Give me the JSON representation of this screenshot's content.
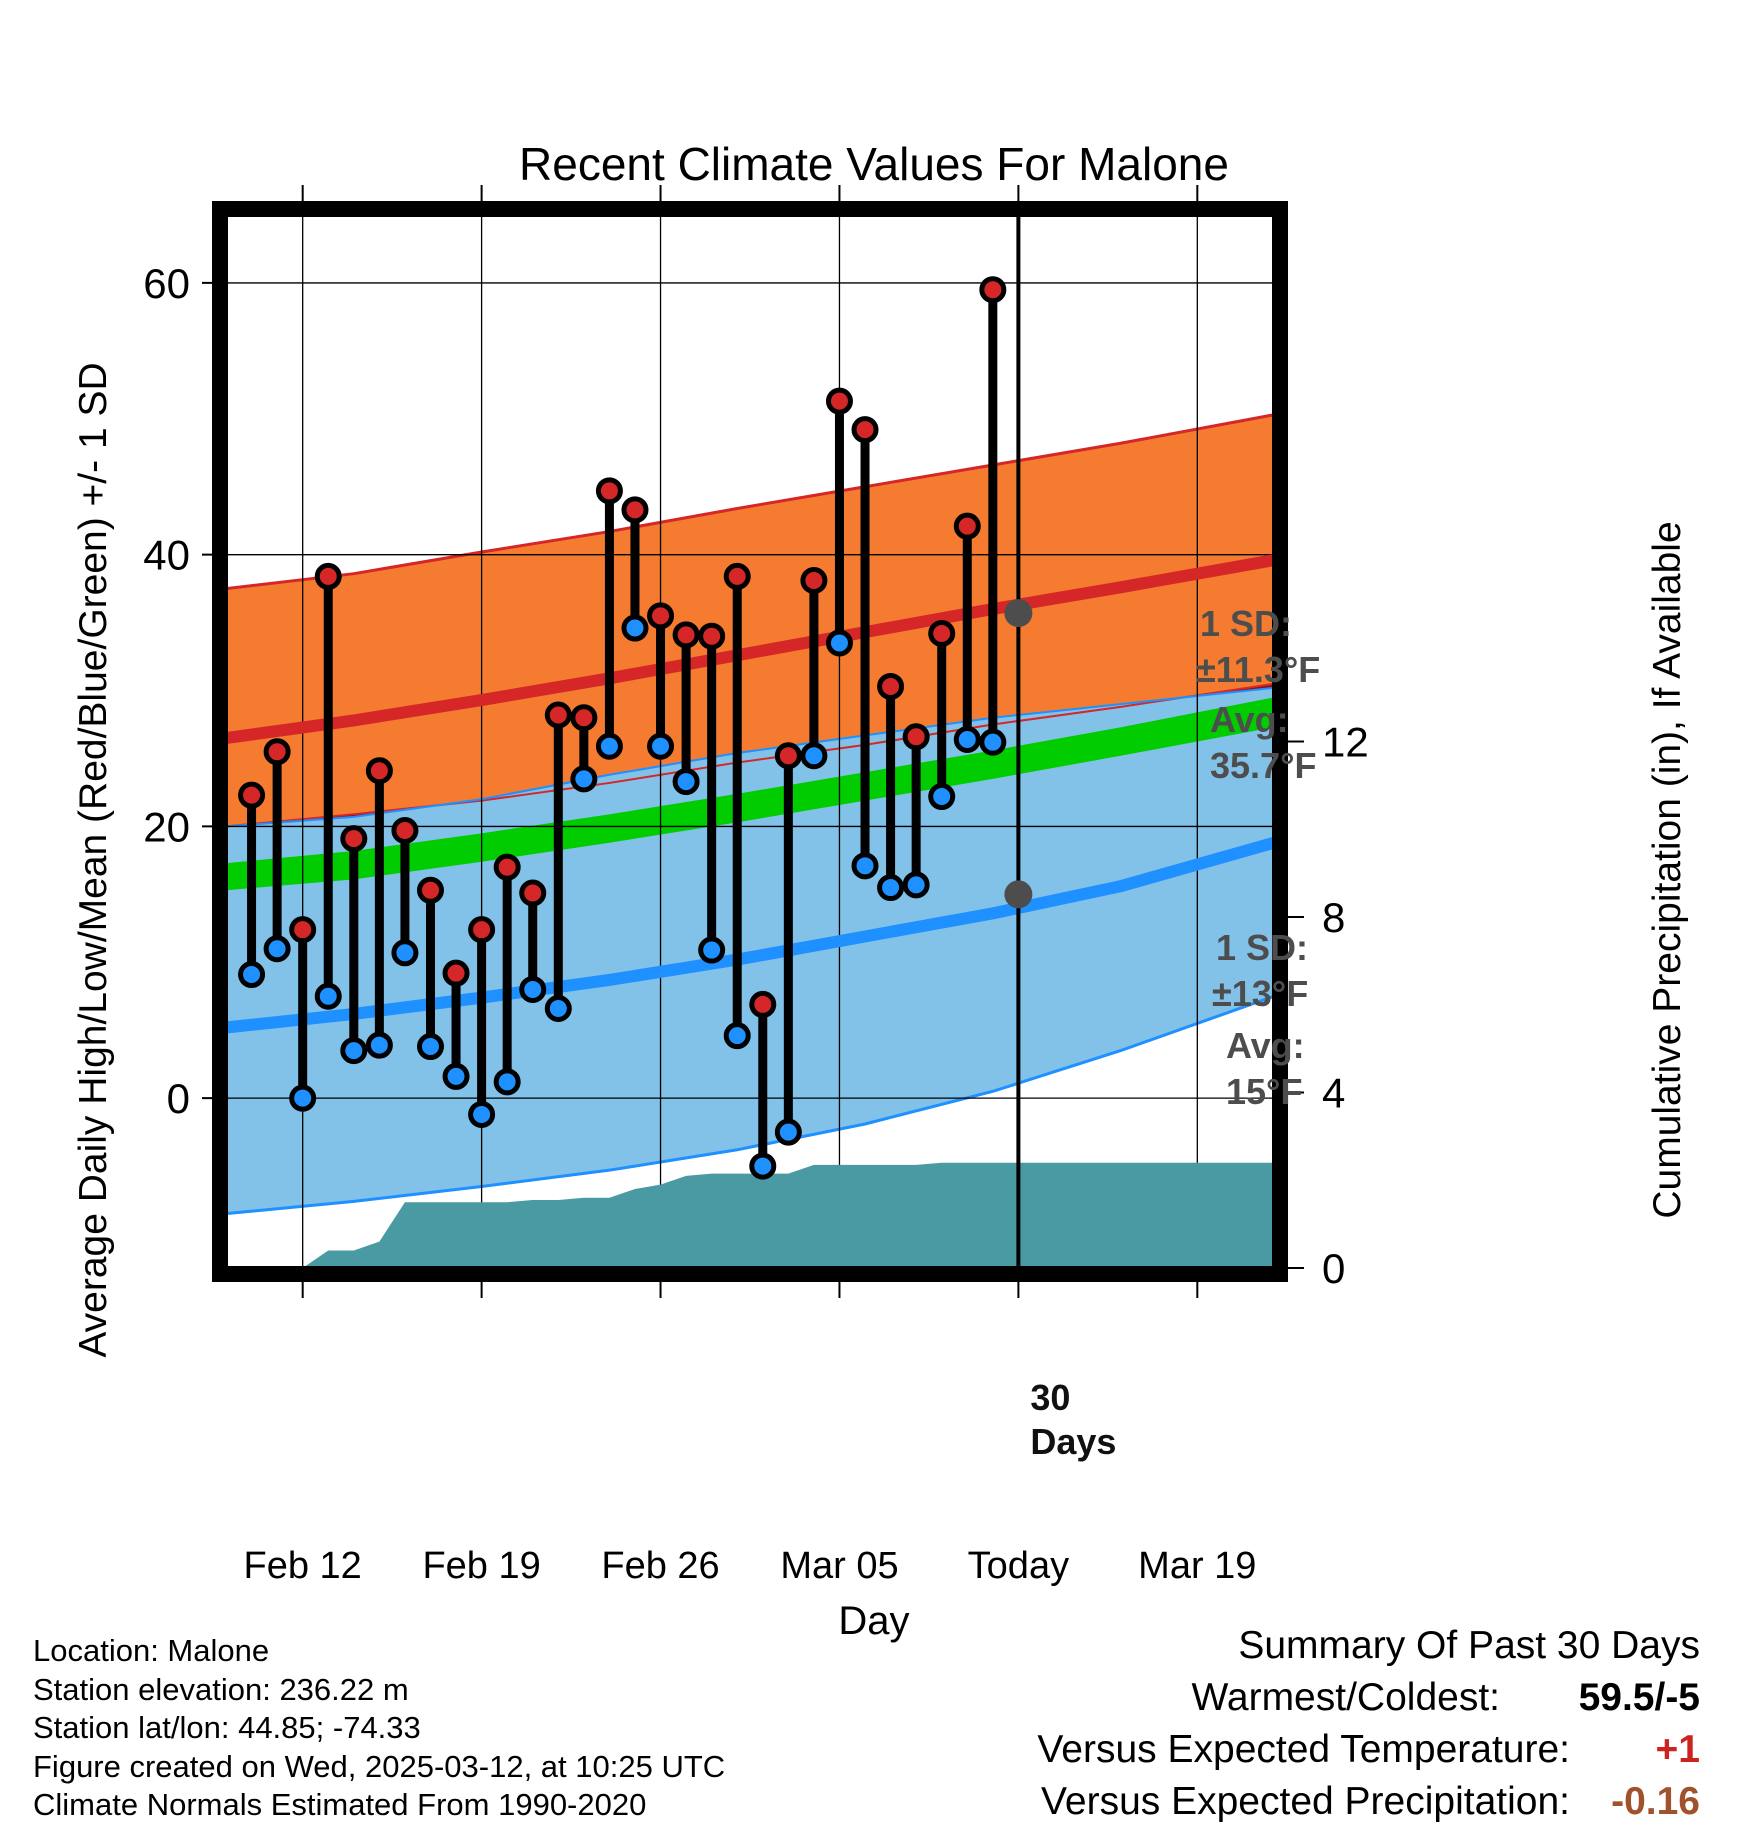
{
  "chart_data": {
    "type": "line",
    "title": "Recent Climate Values For Malone",
    "xlabel": "Day",
    "ylabel": "Average Daily High/Low/Mean (Red/Blue/Green) +/- 1 SD",
    "y2label": "Cumulative Precipitation (in), If Available",
    "x_range": [
      "2025-02-09",
      "2025-03-22"
    ],
    "ylim": [
      -12.5,
      65
    ],
    "y2lim": [
      0,
      24
    ],
    "y_ticks": [
      0,
      20,
      40,
      60
    ],
    "y_ticks_labeled": [
      "0",
      "20",
      "40",
      "60"
    ],
    "y2_ticks": [
      0,
      4,
      8,
      12
    ],
    "y2_ticks_labeled": [
      "0",
      "4",
      "8",
      "12"
    ],
    "x_ticks": [
      {
        "date": "2025-02-12",
        "label": "Feb 12"
      },
      {
        "date": "2025-02-19",
        "label": "Feb 19"
      },
      {
        "date": "2025-02-26",
        "label": "Feb 26"
      },
      {
        "date": "2025-03-05",
        "label": "Mar 05"
      },
      {
        "date": "2025-03-12",
        "label": "Today"
      },
      {
        "date": "2025-03-19",
        "label": "Mar 19"
      }
    ],
    "grid": true,
    "today": "2025-03-12",
    "today_marker_label": "30\nDays",
    "normals": {
      "dates": [
        "2025-02-09",
        "2025-02-14",
        "2025-02-19",
        "2025-02-24",
        "2025-03-01",
        "2025-03-06",
        "2025-03-11",
        "2025-03-16",
        "2025-03-22"
      ],
      "high_mean": [
        26.5,
        27.8,
        29.3,
        30.9,
        32.6,
        34.3,
        36.0,
        37.6,
        39.6
      ],
      "high_upper": [
        37.5,
        38.6,
        40.2,
        41.7,
        43.4,
        45.0,
        46.6,
        48.2,
        50.3
      ],
      "high_lower": [
        20.0,
        20.9,
        21.9,
        23.2,
        24.7,
        26.0,
        27.5,
        28.8,
        30.5
      ],
      "mean_upper": [
        17.3,
        18.2,
        19.5,
        20.9,
        22.4,
        24.0,
        25.6,
        27.3,
        29.5
      ],
      "mean_lower": [
        15.3,
        16.1,
        17.4,
        18.8,
        20.3,
        21.9,
        23.5,
        25.2,
        27.3
      ],
      "low_mean": [
        5.2,
        6.2,
        7.4,
        8.7,
        10.2,
        11.9,
        13.6,
        15.6,
        18.8
      ],
      "low_upper": [
        20.0,
        20.7,
        22.0,
        23.8,
        25.4,
        26.7,
        28.0,
        29.0,
        30.2
      ],
      "low_lower": [
        -8.5,
        -7.6,
        -6.5,
        -5.3,
        -3.8,
        -1.9,
        0.5,
        3.5,
        7.5
      ]
    },
    "series": [
      {
        "name": "High",
        "dates": [
          "2025-02-10",
          "2025-02-11",
          "2025-02-12",
          "2025-02-13",
          "2025-02-14",
          "2025-02-15",
          "2025-02-16",
          "2025-02-17",
          "2025-02-18",
          "2025-02-19",
          "2025-02-20",
          "2025-02-21",
          "2025-02-22",
          "2025-02-23",
          "2025-02-24",
          "2025-02-25",
          "2025-02-26",
          "2025-02-27",
          "2025-02-28",
          "2025-03-01",
          "2025-03-02",
          "2025-03-03",
          "2025-03-04",
          "2025-03-05",
          "2025-03-06",
          "2025-03-07",
          "2025-03-08",
          "2025-03-09",
          "2025-03-10",
          "2025-03-11",
          "2025-03-12"
        ],
        "values": [
          22.3,
          25.5,
          12.4,
          38.4,
          19.1,
          24.1,
          19.7,
          15.3,
          9.2,
          12.4,
          17.0,
          15.1,
          28.2,
          28.0,
          44.7,
          43.3,
          35.5,
          34.1,
          34.0,
          38.4,
          6.9,
          25.2,
          38.1,
          51.3,
          49.2,
          30.3,
          26.6,
          34.2,
          42.1,
          59.5,
          null
        ]
      },
      {
        "name": "Low",
        "dates": [
          "2025-02-10",
          "2025-02-11",
          "2025-02-12",
          "2025-02-13",
          "2025-02-14",
          "2025-02-15",
          "2025-02-16",
          "2025-02-17",
          "2025-02-18",
          "2025-02-19",
          "2025-02-20",
          "2025-02-21",
          "2025-02-22",
          "2025-02-23",
          "2025-02-24",
          "2025-02-25",
          "2025-02-26",
          "2025-02-27",
          "2025-02-28",
          "2025-03-01",
          "2025-03-02",
          "2025-03-03",
          "2025-03-04",
          "2025-03-05",
          "2025-03-06",
          "2025-03-07",
          "2025-03-08",
          "2025-03-09",
          "2025-03-10",
          "2025-03-11",
          "2025-03-12"
        ],
        "values": [
          9.1,
          11.0,
          0.0,
          7.5,
          3.5,
          3.9,
          10.7,
          3.8,
          1.6,
          -1.2,
          1.2,
          8.0,
          6.6,
          23.5,
          25.9,
          34.6,
          25.9,
          23.3,
          10.9,
          4.6,
          -5.0,
          -2.5,
          25.2,
          33.5,
          17.1,
          15.5,
          15.7,
          22.2,
          26.4,
          26.2,
          null
        ]
      },
      {
        "name": "Cumulative Precipitation",
        "dates": [
          "2025-02-10",
          "2025-02-11",
          "2025-02-12",
          "2025-02-13",
          "2025-02-14",
          "2025-02-15",
          "2025-02-16",
          "2025-02-17",
          "2025-02-18",
          "2025-02-19",
          "2025-02-20",
          "2025-02-21",
          "2025-02-22",
          "2025-02-23",
          "2025-02-24",
          "2025-02-25",
          "2025-02-26",
          "2025-02-27",
          "2025-02-28",
          "2025-03-01",
          "2025-03-02",
          "2025-03-03",
          "2025-03-04",
          "2025-03-05",
          "2025-03-06",
          "2025-03-07",
          "2025-03-08",
          "2025-03-09",
          "2025-03-10",
          "2025-03-11",
          "2025-03-12",
          "2025-03-22"
        ],
        "values": [
          0.0,
          0.0,
          0.0,
          0.4,
          0.4,
          0.6,
          1.5,
          1.5,
          1.5,
          1.5,
          1.5,
          1.55,
          1.55,
          1.6,
          1.6,
          1.8,
          1.9,
          2.1,
          2.15,
          2.15,
          2.15,
          2.15,
          2.35,
          2.35,
          2.35,
          2.35,
          2.35,
          2.4,
          2.4,
          2.4,
          2.4,
          2.4
        ]
      }
    ],
    "annotations": {
      "high_sd": "1 SD:",
      "high_sd_value": "±11.3°F",
      "high_avg_label": "Avg:",
      "high_avg_value": "35.7°F",
      "high_avg": 35.7,
      "low_sd": "1 SD:",
      "low_sd_value": "±13°F",
      "low_avg_label": "Avg:",
      "low_avg_value": "15°F",
      "low_avg": 15
    },
    "colors": {
      "high_band": "#f47b30",
      "high_line": "#d62728",
      "overlap_band": "#8b0f14",
      "mean_band": "#00cc00",
      "low_band": "#82c1e8",
      "low_line": "#1e90ff",
      "precip": "#4a9aa4",
      "high_dot": "#d62728",
      "low_dot": "#1e90ff",
      "annotation_text": "#4d4d4d",
      "marker_dot": "#4d4d4d"
    }
  },
  "station": {
    "location": "Location: Malone",
    "elevation": "Station elevation: 236.22 m",
    "latlon": "Station lat/lon: 44.85; -74.33",
    "created": "Figure created on Wed, 2025-03-12, at 10:25 UTC",
    "normals": "Climate Normals Estimated From 1990-2020"
  },
  "summary": {
    "title": "Summary Of Past 30 Days",
    "warm_cold_label": "Warmest/Coldest:",
    "warm_cold_value": "59.5/-5",
    "temp_label": "Versus Expected Temperature:",
    "temp_value": "+1",
    "temp_color": "#cc2222",
    "precip_label": "Versus Expected Precipitation:",
    "precip_value": "-0.16",
    "precip_color": "#a0522d"
  }
}
